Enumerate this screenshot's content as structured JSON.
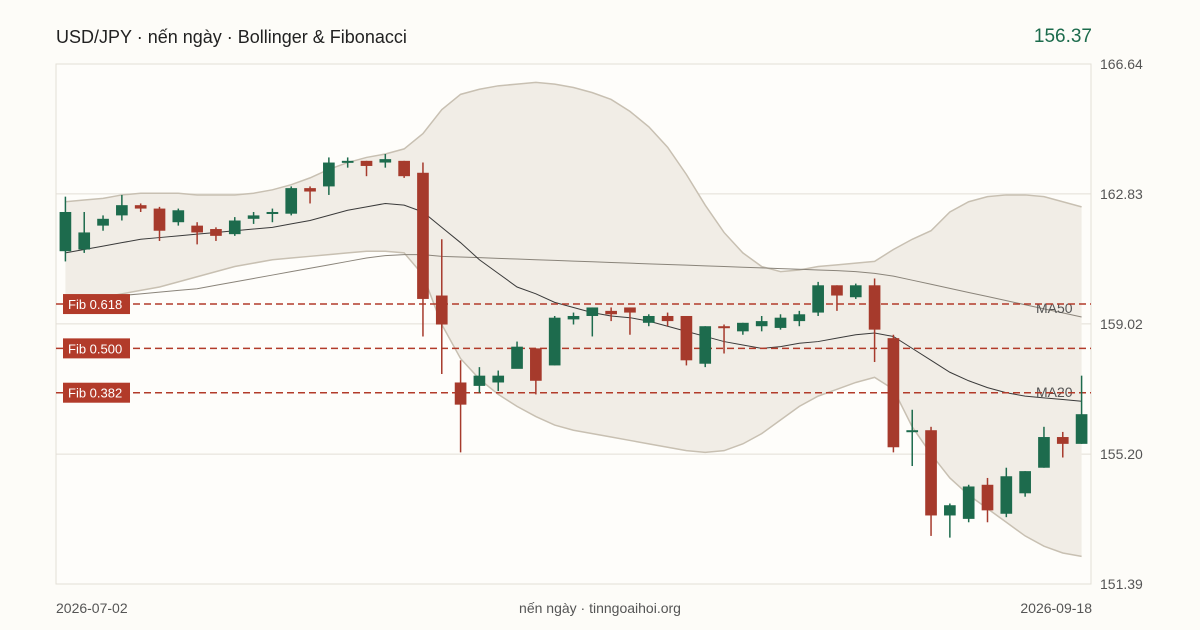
{
  "header": {
    "title": "USD/JPY · nến ngày · Bollinger & Fibonacci",
    "last_price": "156.37"
  },
  "footer": {
    "start_date": "2026-07-02",
    "source": "nến ngày · tinngoaihoi.org",
    "end_date": "2026-09-18"
  },
  "colors": {
    "up": "#1d6b4d",
    "down": "#a63a2c",
    "band": "#f1ede6",
    "band_edge": "#c8c0b2",
    "fib": "#b23b2a",
    "grid": "#e3dfd6",
    "ma": "#555555"
  },
  "chart_data": {
    "type": "candlestick",
    "title": "USD/JPY · nến ngày · Bollinger & Fibonacci",
    "ylim": [
      151.39,
      166.64
    ],
    "yticks": [
      "166.64",
      "162.83",
      "159.02",
      "155.20",
      "151.39"
    ],
    "grid": true,
    "candles": [
      [
        161.15,
        162.3,
        160.85,
        162.75
      ],
      [
        161.2,
        161.7,
        161.1,
        162.3
      ],
      [
        161.9,
        162.1,
        161.75,
        162.2
      ],
      [
        162.2,
        162.5,
        162.05,
        162.8
      ],
      [
        162.5,
        162.4,
        162.3,
        162.55
      ],
      [
        162.4,
        161.75,
        161.45,
        162.45
      ],
      [
        162.0,
        162.35,
        161.9,
        162.4
      ],
      [
        161.9,
        161.7,
        161.35,
        162.0
      ],
      [
        161.8,
        161.6,
        161.45,
        161.85
      ],
      [
        161.65,
        162.05,
        161.6,
        162.15
      ],
      [
        162.1,
        162.2,
        161.95,
        162.3
      ],
      [
        162.25,
        162.3,
        162.0,
        162.4
      ],
      [
        162.25,
        163.0,
        162.2,
        163.05
      ],
      [
        163.0,
        162.9,
        162.55,
        163.05
      ],
      [
        163.05,
        163.75,
        162.8,
        163.9
      ],
      [
        163.75,
        163.8,
        163.6,
        163.9
      ],
      [
        163.8,
        163.65,
        163.35,
        163.8
      ],
      [
        163.75,
        163.85,
        163.6,
        164.0
      ],
      [
        163.8,
        163.35,
        163.3,
        163.8
      ],
      [
        163.45,
        159.75,
        158.65,
        163.75
      ],
      [
        159.85,
        159.0,
        157.55,
        161.5
      ],
      [
        157.3,
        156.65,
        155.25,
        157.95
      ],
      [
        157.2,
        157.5,
        157.0,
        157.75
      ],
      [
        157.3,
        157.5,
        157.05,
        157.65
      ],
      [
        157.7,
        158.35,
        157.75,
        158.5
      ],
      [
        158.3,
        157.35,
        156.95,
        158.3
      ],
      [
        157.8,
        159.2,
        157.8,
        159.25
      ],
      [
        159.15,
        159.25,
        159.0,
        159.35
      ],
      [
        159.25,
        159.5,
        158.65,
        159.5
      ],
      [
        159.4,
        159.3,
        159.1,
        159.5
      ],
      [
        159.5,
        159.35,
        158.7,
        159.5
      ],
      [
        159.05,
        159.25,
        158.95,
        159.3
      ],
      [
        159.25,
        159.1,
        158.95,
        159.35
      ],
      [
        159.25,
        157.95,
        157.8,
        159.25
      ],
      [
        157.85,
        158.95,
        157.75,
        158.95
      ],
      [
        158.95,
        158.9,
        158.15,
        159.0
      ],
      [
        158.8,
        159.05,
        158.7,
        159.05
      ],
      [
        158.95,
        159.1,
        158.8,
        159.25
      ],
      [
        158.9,
        159.2,
        158.85,
        159.3
      ],
      [
        159.1,
        159.3,
        158.95,
        159.4
      ],
      [
        159.35,
        160.15,
        159.25,
        160.25
      ],
      [
        160.15,
        159.85,
        159.4,
        160.15
      ],
      [
        159.8,
        160.15,
        159.75,
        160.2
      ],
      [
        160.15,
        158.85,
        157.9,
        160.35
      ],
      [
        158.6,
        155.4,
        155.25,
        158.7
      ],
      [
        155.9,
        155.9,
        154.85,
        156.5
      ],
      [
        155.9,
        153.4,
        152.8,
        156.0
      ],
      [
        153.4,
        153.7,
        152.75,
        153.75
      ],
      [
        153.3,
        154.25,
        153.2,
        154.3
      ],
      [
        154.3,
        153.55,
        153.2,
        154.5
      ],
      [
        153.45,
        154.55,
        153.35,
        154.8
      ],
      [
        154.05,
        154.7,
        153.95,
        154.7
      ],
      [
        154.8,
        155.7,
        154.8,
        156.0
      ],
      [
        155.7,
        155.5,
        155.1,
        155.85
      ],
      [
        155.5,
        156.37,
        155.5,
        157.5
      ]
    ],
    "fib_levels": [
      {
        "label": "Fib 0.618",
        "value": 159.6
      },
      {
        "label": "Fib 0.500",
        "value": 158.3
      },
      {
        "label": "Fib 0.382",
        "value": 157.0
      }
    ],
    "ma20": [
      161.1,
      161.2,
      161.3,
      161.4,
      161.5,
      161.55,
      161.6,
      161.65,
      161.7,
      161.75,
      161.8,
      161.85,
      161.95,
      162.05,
      162.2,
      162.35,
      162.45,
      162.55,
      162.5,
      162.3,
      161.85,
      161.4,
      160.9,
      160.5,
      160.1,
      159.9,
      159.65,
      159.5,
      159.35,
      159.25,
      159.2,
      159.1,
      158.95,
      158.8,
      158.65,
      158.5,
      158.4,
      158.3,
      158.35,
      158.45,
      158.5,
      158.6,
      158.7,
      158.75,
      158.65,
      158.3,
      157.95,
      157.6,
      157.35,
      157.15,
      157.0,
      156.9,
      156.85,
      156.8,
      156.75
    ],
    "ma50": [
      159.7,
      159.75,
      159.8,
      159.85,
      159.9,
      159.95,
      160.0,
      160.05,
      160.15,
      160.25,
      160.35,
      160.45,
      160.55,
      160.65,
      160.75,
      160.85,
      160.95,
      161.02,
      161.05,
      161.05,
      161.0,
      160.98,
      160.96,
      160.94,
      160.92,
      160.9,
      160.88,
      160.86,
      160.84,
      160.82,
      160.8,
      160.78,
      160.76,
      160.74,
      160.72,
      160.7,
      160.68,
      160.66,
      160.64,
      160.62,
      160.6,
      160.58,
      160.55,
      160.5,
      160.42,
      160.3,
      160.18,
      160.06,
      159.94,
      159.82,
      159.7,
      159.58,
      159.46,
      159.34,
      159.22
    ],
    "bb_upper": [
      162.6,
      162.65,
      162.7,
      162.8,
      162.85,
      162.85,
      162.85,
      162.8,
      162.8,
      162.8,
      162.85,
      162.95,
      163.1,
      163.3,
      163.55,
      163.75,
      163.9,
      164.0,
      164.15,
      164.6,
      165.3,
      165.75,
      165.9,
      166.0,
      166.05,
      166.1,
      166.05,
      165.95,
      165.8,
      165.6,
      165.25,
      164.8,
      164.2,
      163.4,
      162.5,
      161.7,
      161.1,
      160.7,
      160.55,
      160.6,
      160.7,
      160.75,
      160.8,
      160.85,
      161.2,
      161.5,
      161.75,
      162.3,
      162.6,
      162.75,
      162.8,
      162.8,
      162.75,
      162.6,
      162.45
    ],
    "bb_lower": [
      159.6,
      159.7,
      159.8,
      159.9,
      160.0,
      160.1,
      160.25,
      160.4,
      160.55,
      160.7,
      160.8,
      160.9,
      160.95,
      161.0,
      161.05,
      161.1,
      161.15,
      161.15,
      161.1,
      160.45,
      159.0,
      158.0,
      157.4,
      156.95,
      156.6,
      156.3,
      156.05,
      155.9,
      155.8,
      155.7,
      155.6,
      155.5,
      155.4,
      155.3,
      155.25,
      155.3,
      155.5,
      155.8,
      156.2,
      156.6,
      156.9,
      157.1,
      157.3,
      157.45,
      157.1,
      156.0,
      155.2,
      154.5,
      154.0,
      153.6,
      153.2,
      152.8,
      152.5,
      152.3,
      152.2
    ],
    "series_labels": {
      "ma50": "MA50",
      "ma20": "MA20"
    }
  }
}
